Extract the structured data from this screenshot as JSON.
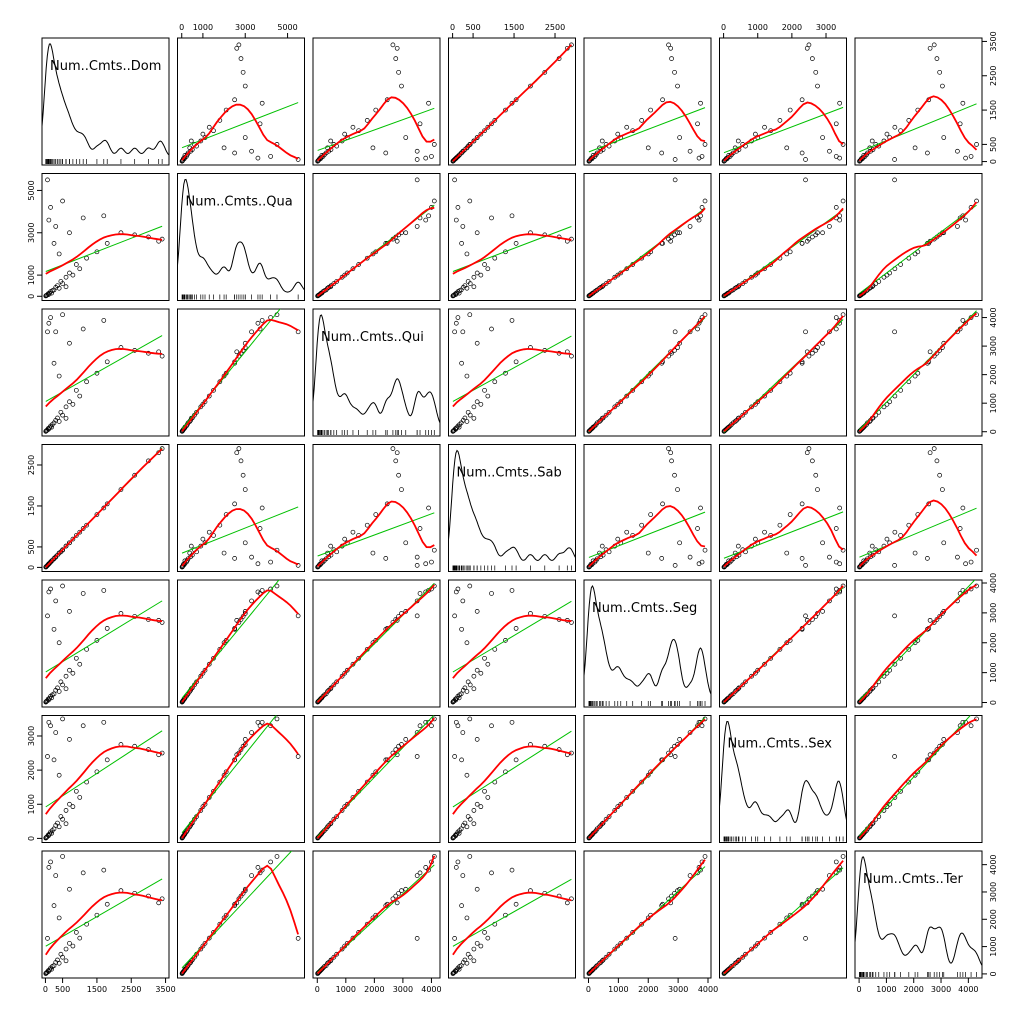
{
  "chart_data": {
    "type": "scatter-matrix",
    "variables": [
      {
        "name": "Num..Cmts..Dom",
        "lim": [
          -100,
          3600
        ],
        "ticks": [
          0,
          500,
          1500,
          2500,
          3500
        ],
        "values": [
          20,
          50,
          80,
          120,
          150,
          200,
          250,
          300,
          350,
          400,
          450,
          500,
          600,
          700,
          800,
          900,
          1000,
          1200,
          1500,
          1800,
          2200,
          2600,
          3000,
          3400,
          3300,
          100,
          150,
          300,
          500,
          250,
          400,
          700,
          1100,
          60,
          1700,
          30,
          10,
          90,
          180,
          600
        ]
      },
      {
        "name": "Num..Cmts..Qua",
        "lim": [
          -200,
          5800
        ],
        "ticks": [
          0,
          1000,
          3000,
          5000
        ],
        "values": [
          30,
          60,
          120,
          150,
          220,
          260,
          300,
          420,
          500,
          380,
          700,
          600,
          900,
          1100,
          1000,
          1500,
          1300,
          1800,
          2100,
          2500,
          3000,
          2900,
          2800,
          2700,
          2600,
          3600,
          4200,
          3300,
          4500,
          2500,
          2000,
          3000,
          3700,
          5500,
          3800,
          40,
          15,
          80,
          150,
          450
        ]
      },
      {
        "name": "Num..Cmts..Qui",
        "lim": [
          -150,
          4300
        ],
        "ticks": [
          0,
          1000,
          2000,
          3000,
          4000
        ],
        "values": [
          25,
          55,
          110,
          140,
          200,
          250,
          310,
          400,
          480,
          360,
          680,
          580,
          870,
          1050,
          960,
          1450,
          1250,
          1750,
          2050,
          2450,
          2950,
          2850,
          2750,
          2650,
          2800,
          3800,
          4000,
          3500,
          4100,
          2400,
          1950,
          3100,
          3600,
          3500,
          3900,
          35,
          12,
          85,
          160,
          470
        ]
      },
      {
        "name": "Num..Cmts..Sab",
        "lim": [
          -100,
          3000
        ],
        "ticks": [
          0,
          500,
          1500,
          2500
        ],
        "values": [
          15,
          40,
          70,
          100,
          130,
          170,
          210,
          260,
          300,
          350,
          380,
          430,
          520,
          600,
          690,
          780,
          860,
          1030,
          1290,
          1550,
          1900,
          2250,
          2600,
          2900,
          2800,
          90,
          130,
          250,
          420,
          220,
          350,
          600,
          950,
          50,
          1450,
          25,
          8,
          75,
          160,
          520
        ]
      },
      {
        "name": "Num..Cmts..Seg",
        "lim": [
          -150,
          4100
        ],
        "ticks": [
          0,
          1000,
          2000,
          3000,
          4000
        ],
        "values": [
          28,
          58,
          115,
          145,
          210,
          255,
          290,
          410,
          490,
          370,
          690,
          590,
          880,
          1080,
          980,
          1480,
          1280,
          1780,
          2080,
          2480,
          2980,
          2880,
          2780,
          2680,
          2750,
          3700,
          3800,
          3400,
          3900,
          2450,
          2000,
          3050,
          3650,
          2900,
          3750,
          38,
          14,
          82,
          155,
          460
        ]
      },
      {
        "name": "Num..Cmts..Sex",
        "lim": [
          -120,
          3600
        ],
        "ticks": [
          0,
          1000,
          2000,
          3000
        ],
        "values": [
          22,
          50,
          100,
          130,
          190,
          230,
          280,
          380,
          450,
          340,
          640,
          560,
          820,
          1000,
          930,
          1380,
          1200,
          1650,
          1950,
          2300,
          2750,
          2700,
          2600,
          2500,
          2450,
          3400,
          3300,
          3100,
          3500,
          2300,
          1850,
          2900,
          3300,
          2400,
          3400,
          30,
          11,
          78,
          150,
          430
        ]
      },
      {
        "name": "Num..Cmts..Ter",
        "lim": [
          -150,
          4500
        ],
        "ticks": [
          0,
          1000,
          2000,
          3000,
          4000
        ],
        "values": [
          26,
          62,
          118,
          150,
          215,
          270,
          305,
          420,
          510,
          390,
          720,
          610,
          910,
          1120,
          1020,
          1520,
          1310,
          1820,
          2150,
          2550,
          3050,
          2950,
          2850,
          2750,
          2600,
          3900,
          4100,
          3600,
          4300,
          2500,
          2050,
          3100,
          3700,
          1300,
          3800,
          40,
          13,
          88,
          170,
          480
        ]
      }
    ],
    "point_color": "#000000",
    "lm_color": "#00c000",
    "smooth_color": "#ff0000",
    "density_color": "#000000"
  }
}
